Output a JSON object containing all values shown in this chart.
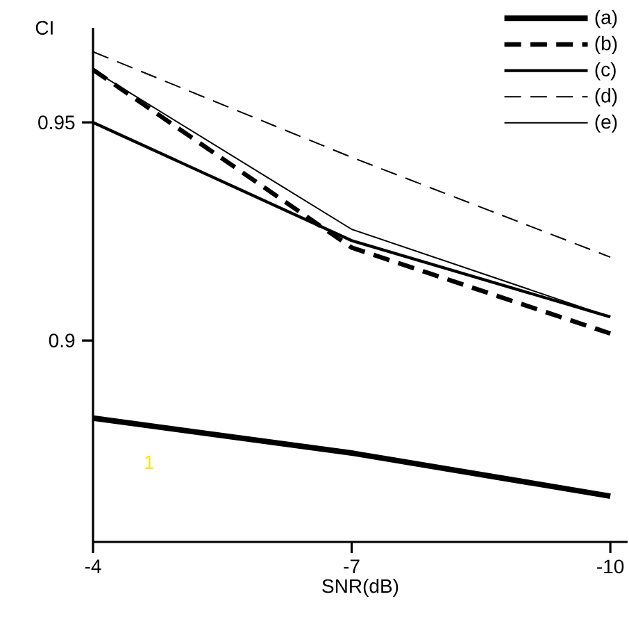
{
  "chart_data": {
    "type": "line",
    "xlabel": "SNR(dB)",
    "ylabel": "CI",
    "x": [
      -4,
      -7,
      -10
    ],
    "xlim": [
      -4,
      -10.2
    ],
    "xticks": [
      -4,
      -7,
      -10
    ],
    "ylim": [
      0.8538,
      0.9717
    ],
    "yticks": [
      0.9,
      0.95
    ],
    "series": [
      {
        "name": "(a)",
        "color": "#000000",
        "values": [
          0.8822,
          0.8742,
          0.8643
        ],
        "line_style": "solid"
      },
      {
        "name": "(b)",
        "color": "#000000",
        "values": [
          0.9621,
          0.9213,
          0.9016
        ],
        "line_style": "dashed"
      },
      {
        "name": "(c)",
        "color": "#000000",
        "values": [
          0.95,
          0.9229,
          0.9054
        ],
        "line_style": "solid"
      },
      {
        "name": "(d)",
        "color": "#000000",
        "values": [
          0.9662,
          0.942,
          0.9191
        ],
        "line_style": "dashed"
      },
      {
        "name": "(e)",
        "color": "#000000",
        "values": [
          0.962,
          0.9255,
          0.9054
        ],
        "line_style": "solid"
      }
    ],
    "legend": "top right",
    "grid": false,
    "marker": "none",
    "annotations": [
      "1"
    ]
  }
}
